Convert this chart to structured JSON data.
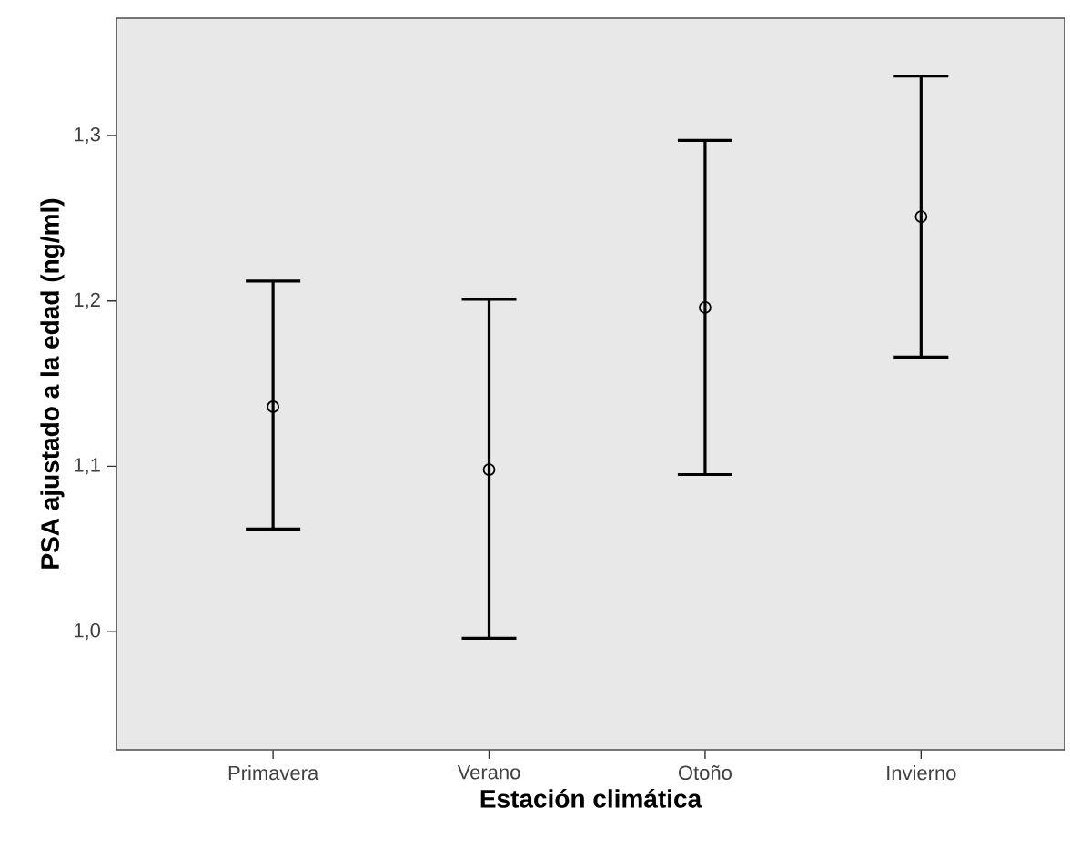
{
  "chart_data": {
    "type": "scatter",
    "xlabel": "Estación climática",
    "ylabel": "PSA ajustado a la edad (ng/ml)",
    "categories": [
      "Primavera",
      "Verano",
      "Otoño",
      "Invierno"
    ],
    "values": [
      1.136,
      1.098,
      1.196,
      1.251
    ],
    "errors": [
      [
        1.062,
        1.212
      ],
      [
        0.996,
        1.201
      ],
      [
        1.095,
        1.297
      ],
      [
        1.166,
        1.336
      ]
    ],
    "color": "#000000",
    "marker": "circle",
    "ylim": [
      0.9285,
      1.371
    ],
    "yticks": [
      {
        "value": 1.0,
        "label": "1,0"
      },
      {
        "value": 1.1,
        "label": "1,1"
      },
      {
        "value": 1.2,
        "label": "1,2"
      },
      {
        "value": 1.3,
        "label": "1,3"
      }
    ]
  }
}
